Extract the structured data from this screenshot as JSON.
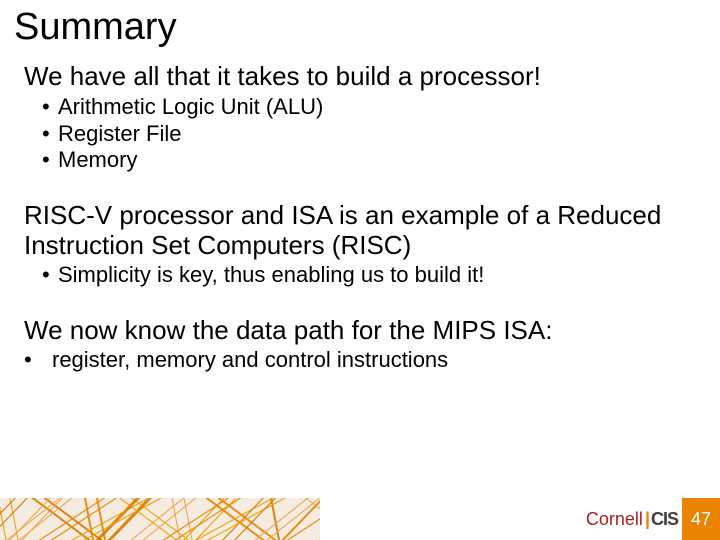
{
  "title": "Summary",
  "block1": {
    "lead": "We have all that it takes to build a processor!",
    "bullets": [
      "Arithmetic Logic Unit (ALU)",
      "Register File",
      "Memory"
    ]
  },
  "block2": {
    "lead": "RISC-V processor and ISA is an example of a Reduced Instruction Set Computers (RISC)",
    "bullets": [
      "Simplicity is key, thus enabling us to build it!"
    ]
  },
  "block3": {
    "lead": "We now know the data path for the MIPS ISA:",
    "bullets_inline": [
      "register, memory and control instructions"
    ]
  },
  "footer": {
    "brand_cornell": "Cornell",
    "brand_cis": "CIS",
    "page_number": "47",
    "art": {
      "background_color": "#f5ebe0",
      "line_colors": [
        "#e98300",
        "#e9a300",
        "#d97800",
        "#eaa84b"
      ],
      "line_count": 22
    },
    "page_badge_bg": "#e98300",
    "page_badge_fg": "#ffffff",
    "cornell_color": "#b31b1b",
    "cis_color": "#404040"
  }
}
